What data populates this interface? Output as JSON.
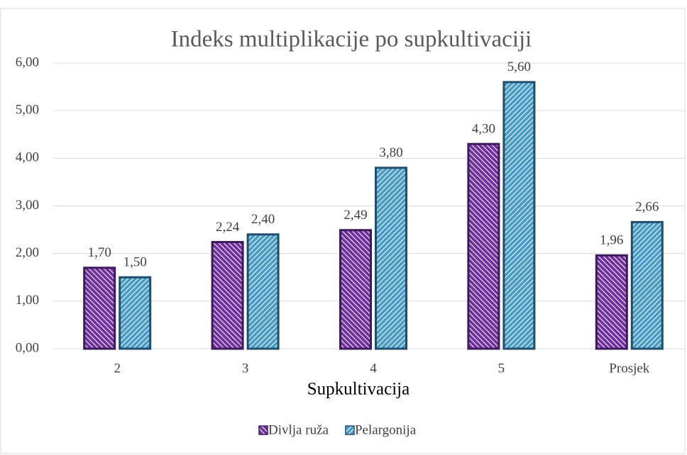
{
  "chart_data": {
    "type": "bar",
    "title": "Indeks multiplikacije po supkultivaciji",
    "x_label": "Supkultivacija",
    "categories": [
      "2",
      "3",
      "4",
      "5",
      "Prosjek"
    ],
    "series": [
      {
        "name": "Divlja ruža",
        "color": "#7030a0",
        "values": [
          1.7,
          2.24,
          2.49,
          4.3,
          1.96
        ],
        "value_labels": [
          "1,70",
          "2,24",
          "2,49",
          "4,30",
          "1,96"
        ]
      },
      {
        "name": "Pelargonija",
        "color": "#4a9cc8",
        "values": [
          1.5,
          2.4,
          3.8,
          5.6,
          2.66
        ],
        "value_labels": [
          "1,50",
          "2,40",
          "3,80",
          "5,60",
          "2,66"
        ]
      }
    ],
    "ylim": [
      0,
      6
    ],
    "yticks": [
      {
        "value": 0,
        "label": "0,00"
      },
      {
        "value": 1,
        "label": "1,00"
      },
      {
        "value": 2,
        "label": "2,00"
      },
      {
        "value": 3,
        "label": "3,00"
      },
      {
        "value": 4,
        "label": "4,00"
      },
      {
        "value": 5,
        "label": "5,00"
      },
      {
        "value": 6,
        "label": "6,00"
      }
    ],
    "grid": true,
    "legend": "bottom"
  }
}
